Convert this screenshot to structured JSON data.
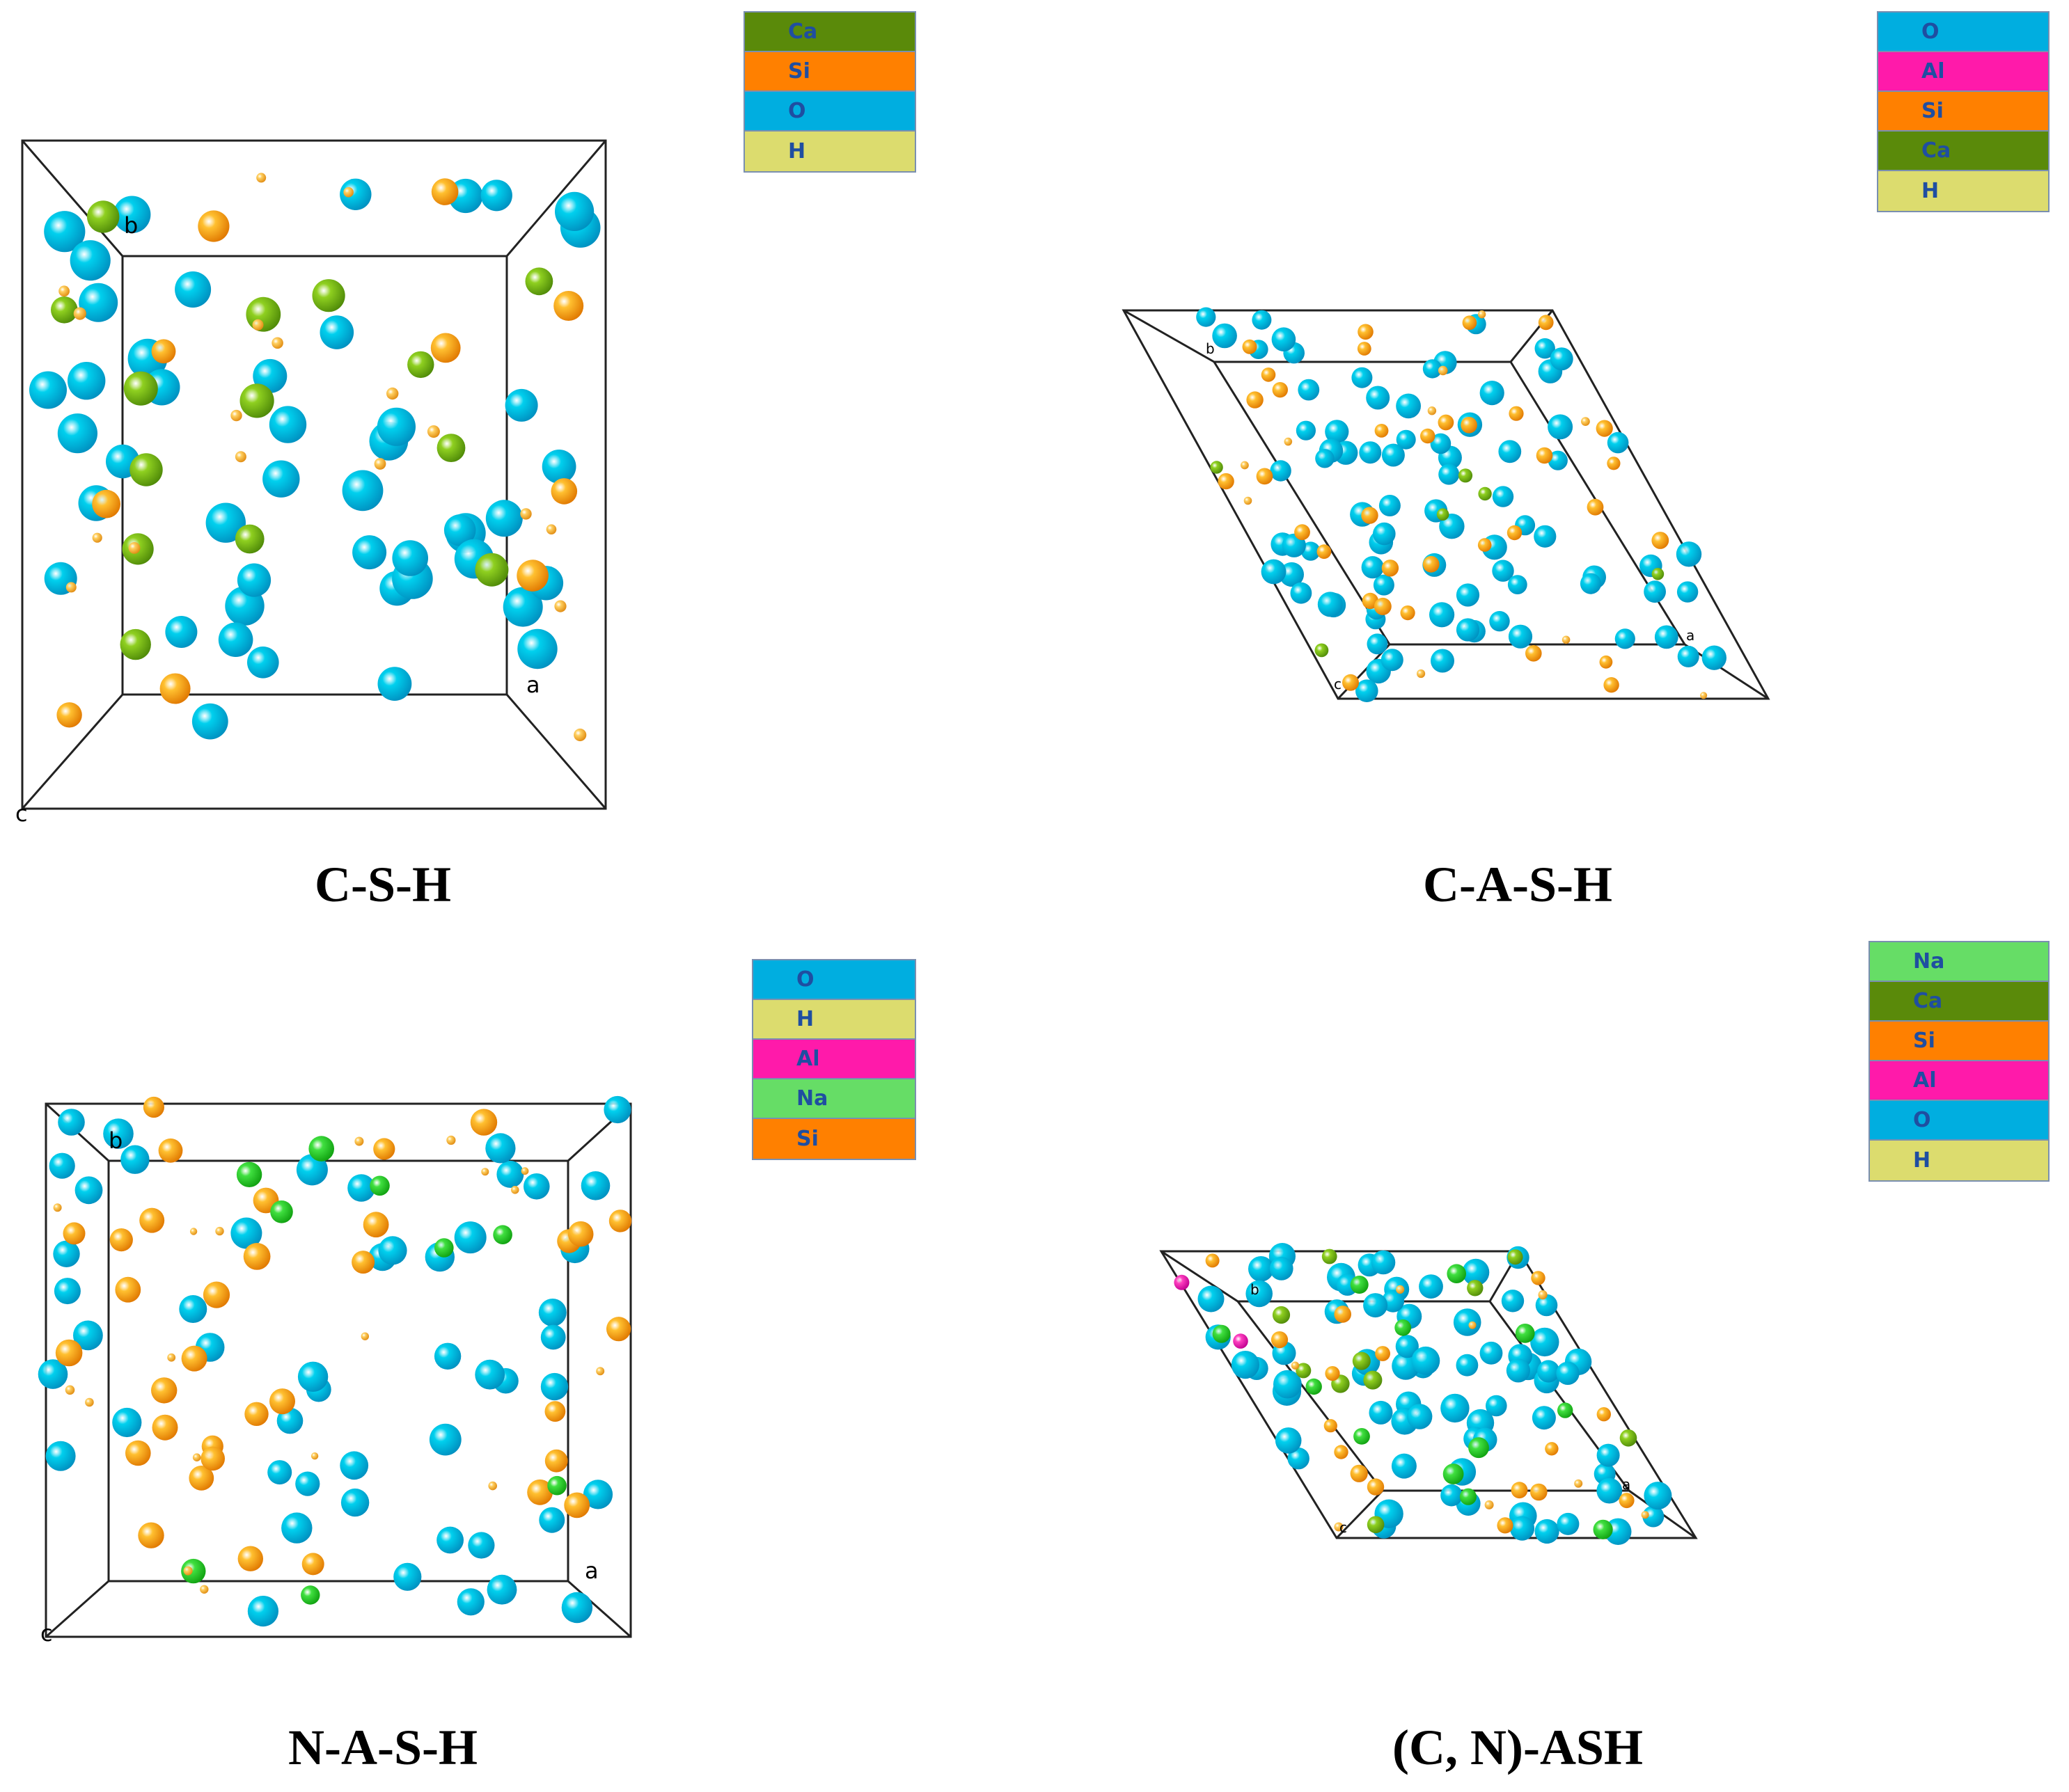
{
  "panels": [
    {
      "id": "csh",
      "caption": "C-S-H",
      "legend": [
        {
          "label": "Ca",
          "color": "#5a8a0a"
        },
        {
          "label": "Si",
          "color": "#ff8000"
        },
        {
          "label": "O",
          "color": "#00aee0"
        },
        {
          "label": "H",
          "color": "#dcdc6e"
        }
      ],
      "axis_labels": [
        "b",
        "a",
        "c"
      ]
    },
    {
      "id": "cash",
      "caption": "C-A-S-H",
      "legend": [
        {
          "label": "O",
          "color": "#00aee0"
        },
        {
          "label": "Al",
          "color": "#ff1aaa"
        },
        {
          "label": "Si",
          "color": "#ff8000"
        },
        {
          "label": "Ca",
          "color": "#5a8a0a"
        },
        {
          "label": "H",
          "color": "#dcdc6e"
        }
      ],
      "axis_labels": [
        "b",
        "a",
        "c"
      ]
    },
    {
      "id": "nash",
      "caption": "N-A-S-H",
      "legend": [
        {
          "label": "O",
          "color": "#00aee0"
        },
        {
          "label": "H",
          "color": "#dcdc6e"
        },
        {
          "label": "Al",
          "color": "#ff1aaa"
        },
        {
          "label": "Na",
          "color": "#66dd66"
        },
        {
          "label": "Si",
          "color": "#ff8000"
        }
      ],
      "axis_labels": [
        "b",
        "a",
        "c"
      ]
    },
    {
      "id": "cnash",
      "caption": "(C, N)-ASH",
      "legend": [
        {
          "label": "Na",
          "color": "#66dd66"
        },
        {
          "label": "Ca",
          "color": "#5a8a0a"
        },
        {
          "label": "Si",
          "color": "#ff8000"
        },
        {
          "label": "Al",
          "color": "#ff1aaa"
        },
        {
          "label": "O",
          "color": "#00aee0"
        },
        {
          "label": "H",
          "color": "#dcdc6e"
        }
      ],
      "axis_labels": [
        "b",
        "a",
        "c"
      ]
    }
  ]
}
